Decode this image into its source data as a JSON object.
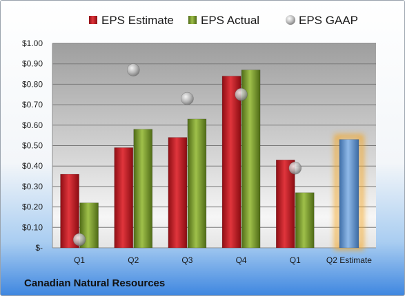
{
  "company_name": "Canadian Natural Resources",
  "chart_data": {
    "type": "bar",
    "categories": [
      "Q1",
      "Q2",
      "Q3",
      "Q4",
      "Q1",
      "Q2 Estimate"
    ],
    "series": [
      {
        "name": "EPS Estimate",
        "kind": "bar",
        "color": "#c0202a",
        "values": [
          0.36,
          0.49,
          0.54,
          0.84,
          0.43,
          null
        ]
      },
      {
        "name": "EPS Actual",
        "kind": "bar",
        "color": "#7a9b2e",
        "values": [
          0.22,
          0.58,
          0.63,
          0.87,
          0.27,
          null
        ]
      },
      {
        "name": "EPS GAAP",
        "kind": "marker",
        "color": "#b8b8b8",
        "values": [
          0.04,
          0.87,
          0.73,
          0.75,
          0.39,
          null
        ]
      }
    ],
    "forecast": {
      "category": "Q2 Estimate",
      "value": 0.53,
      "color": "#6f9fd6",
      "glow": "#f5a623"
    },
    "y_ticks": [
      "$1.00",
      "$0.90",
      "$0.80",
      "$0.70",
      "$0.60",
      "$0.50",
      "$0.40",
      "$0.30",
      "$0.20",
      "$0.10",
      "$-"
    ],
    "ylim": [
      0,
      1.0
    ],
    "grid": true,
    "legend_position": "top",
    "title": "",
    "xlabel": "",
    "ylabel": ""
  }
}
